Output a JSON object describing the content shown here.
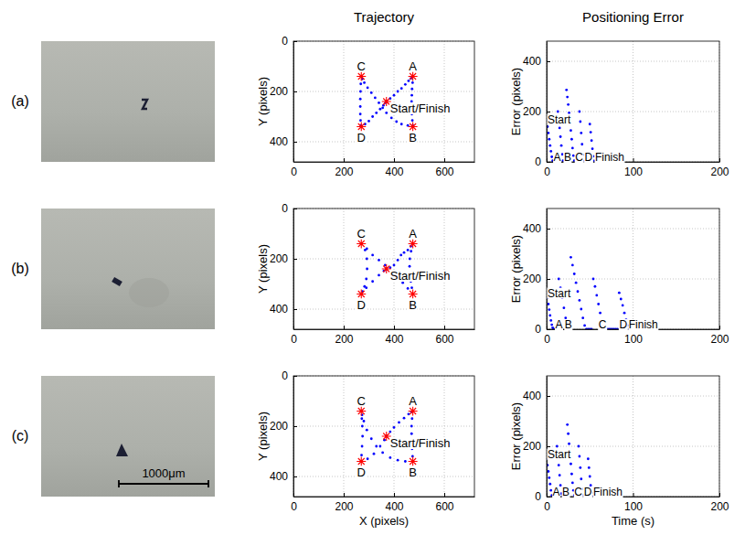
{
  "figure": {
    "column_titles": [
      "Trajectory",
      "Positioning Error"
    ],
    "row_labels": [
      "(a)",
      "(b)",
      "(c)"
    ],
    "scale_bar": "1000μm"
  },
  "chart_data": [
    {
      "type": "scatter",
      "y_label": "Y (pixels)",
      "xlim": [
        0,
        720
      ],
      "ylim": [
        480,
        0
      ],
      "xticks": [
        0,
        200,
        400,
        600
      ],
      "yticks": [
        0,
        200,
        400
      ],
      "grid": true,
      "series": [
        {
          "color": "#0000ff",
          "marker": "dot",
          "x": [
            370,
            385,
            400,
            415,
            430,
            445,
            458,
            468,
            473,
            475,
            474,
            472,
            471,
            470,
            470,
            471,
            473,
            475,
            475,
            455,
            430,
            410,
            390,
            370,
            355,
            340,
            325,
            310,
            295,
            282,
            274,
            270,
            268,
            267,
            266,
            266,
            266,
            267,
            269,
            270,
            285,
            300,
            315,
            330,
            345,
            358,
            366,
            370
          ],
          "values": [
            240,
            228,
            215,
            200,
            188,
            172,
            158,
            148,
            142,
            140,
            165,
            190,
            215,
            240,
            265,
            290,
            315,
            335,
            340,
            335,
            330,
            320,
            305,
            285,
            265,
            245,
            225,
            205,
            185,
            165,
            150,
            140,
            170,
            200,
            230,
            260,
            290,
            315,
            335,
            340,
            330,
            318,
            300,
            285,
            270,
            255,
            245,
            240
          ]
        },
        {
          "color": "#ff0000",
          "marker": "star",
          "x": [
            475,
            475,
            270,
            270,
            370
          ],
          "values": [
            140,
            340,
            140,
            340,
            240
          ]
        }
      ],
      "annotations": [
        {
          "text": "A",
          "x": 475,
          "y": 140
        },
        {
          "text": "B",
          "x": 475,
          "y": 340
        },
        {
          "text": "C",
          "x": 270,
          "y": 140
        },
        {
          "text": "D",
          "x": 270,
          "y": 340
        },
        {
          "text": "Start/Finish",
          "x": 370,
          "y": 240
        }
      ]
    },
    {
      "type": "scatter",
      "y_label": "Error (pixels)",
      "xlim": [
        0,
        200
      ],
      "ylim": [
        0,
        480
      ],
      "xticks": [
        0,
        100,
        200
      ],
      "yticks": [
        0,
        200,
        400
      ],
      "grid": true,
      "series": [
        {
          "color": "#0000ff",
          "marker": "dot",
          "x": [
            0,
            1,
            2,
            3,
            4,
            5,
            6,
            7,
            8,
            10,
            12,
            13,
            14,
            15,
            16,
            17,
            18,
            19,
            20,
            22,
            23,
            24,
            25,
            26,
            27,
            28,
            29,
            30,
            31,
            32,
            33,
            35,
            37,
            38,
            39,
            40,
            41,
            42,
            43,
            44,
            46,
            48,
            50,
            51,
            52,
            53,
            54,
            55,
            56,
            58,
            60
          ],
          "values": [
            165,
            140,
            115,
            90,
            65,
            42,
            20,
            5,
            0,
            0,
            0,
            200,
            170,
            135,
            100,
            65,
            30,
            5,
            0,
            0,
            286,
            258,
            228,
            195,
            160,
            125,
            90,
            55,
            25,
            5,
            0,
            0,
            0,
            200,
            160,
            115,
            70,
            28,
            3,
            0,
            0,
            0,
            150,
            118,
            85,
            52,
            22,
            4,
            0,
            0,
            0
          ]
        }
      ],
      "annotations": [
        {
          "text": "Start",
          "x": 1,
          "y": 150
        },
        {
          "text": "A",
          "x": 8,
          "y": 0
        },
        {
          "text": "B",
          "x": 20,
          "y": 0
        },
        {
          "text": "C",
          "x": 33,
          "y": 0
        },
        {
          "text": "D",
          "x": 44,
          "y": 0
        },
        {
          "text": "Finish",
          "x": 56,
          "y": 0
        }
      ]
    },
    {
      "type": "scatter",
      "y_label": "Y (pixels)",
      "xlim": [
        0,
        720
      ],
      "ylim": [
        480,
        0
      ],
      "xticks": [
        0,
        200,
        400,
        600
      ],
      "yticks": [
        0,
        200,
        400
      ],
      "grid": true,
      "series": [
        {
          "color": "#0000ff",
          "marker": "dot",
          "x": [
            370,
            385,
            400,
            415,
            428,
            440,
            455,
            467,
            475,
            468,
            463,
            462,
            464,
            467,
            471,
            475,
            455,
            435,
            412,
            390,
            365,
            340,
            315,
            292,
            270,
            285,
            292,
            293,
            290,
            283,
            275,
            270,
            290,
            315,
            340,
            360,
            370
          ],
          "values": [
            240,
            235,
            225,
            205,
            185,
            175,
            165,
            150,
            140,
            170,
            200,
            230,
            260,
            290,
            315,
            340,
            318,
            295,
            270,
            250,
            225,
            205,
            185,
            160,
            140,
            165,
            200,
            240,
            280,
            310,
            330,
            340,
            315,
            290,
            265,
            248,
            240
          ]
        },
        {
          "color": "#ff0000",
          "marker": "star",
          "x": [
            475,
            475,
            270,
            270,
            370
          ],
          "values": [
            140,
            340,
            140,
            340,
            240
          ]
        }
      ],
      "annotations": [
        {
          "text": "A",
          "x": 475,
          "y": 140
        },
        {
          "text": "B",
          "x": 475,
          "y": 340
        },
        {
          "text": "C",
          "x": 270,
          "y": 140
        },
        {
          "text": "D",
          "x": 270,
          "y": 340
        },
        {
          "text": "Start/Finish",
          "x": 370,
          "y": 240
        }
      ]
    },
    {
      "type": "scatter",
      "y_label": "Error (pixels)",
      "xlim": [
        0,
        200
      ],
      "ylim": [
        0,
        480
      ],
      "xticks": [
        0,
        100,
        200
      ],
      "yticks": [
        0,
        200,
        400
      ],
      "grid": true,
      "series": [
        {
          "color": "#0000ff",
          "marker": "dot",
          "x": [
            0,
            1,
            2,
            3,
            4,
            5,
            6,
            7,
            8,
            10,
            12,
            14,
            16,
            18,
            20,
            22,
            24,
            25,
            27,
            28,
            30,
            32,
            34,
            36,
            38,
            40,
            42,
            44,
            46,
            48,
            50,
            52,
            54,
            56,
            58,
            60,
            62,
            64,
            66,
            68,
            70,
            72,
            74,
            76,
            78,
            80,
            82,
            84,
            86,
            88,
            90,
            92,
            94,
            95,
            97,
            99
          ],
          "values": [
            145,
            125,
            100,
            78,
            55,
            35,
            18,
            6,
            0,
            0,
            0,
            200,
            165,
            125,
            85,
            45,
            12,
            0,
            0,
            286,
            255,
            220,
            185,
            150,
            115,
            80,
            45,
            15,
            0,
            0,
            0,
            0,
            200,
            170,
            135,
            100,
            65,
            35,
            10,
            0,
            0,
            0,
            0,
            0,
            0,
            0,
            0,
            145,
            120,
            95,
            65,
            38,
            15,
            0,
            0,
            0
          ]
        }
      ],
      "annotations": [
        {
          "text": "Start",
          "x": 1,
          "y": 125
        },
        {
          "text": "A",
          "x": 10,
          "y": 0
        },
        {
          "text": "B",
          "x": 21,
          "y": 0
        },
        {
          "text": "C",
          "x": 60,
          "y": 0
        },
        {
          "text": "D",
          "x": 84,
          "y": 0
        },
        {
          "text": "Finish",
          "x": 95,
          "y": 0
        }
      ]
    },
    {
      "type": "scatter",
      "x_label": "X (pixels)",
      "y_label": "Y (pixels)",
      "xlim": [
        0,
        720
      ],
      "ylim": [
        480,
        0
      ],
      "xticks": [
        0,
        200,
        400,
        600
      ],
      "yticks": [
        0,
        200,
        400
      ],
      "grid": true,
      "series": [
        {
          "color": "#0000ff",
          "marker": "dot",
          "x": [
            370,
            385,
            400,
            420,
            440,
            458,
            470,
            475,
            472,
            470,
            470,
            471,
            472,
            474,
            475,
            445,
            415,
            385,
            355,
            330,
            310,
            292,
            280,
            273,
            270,
            272,
            274,
            275,
            273,
            271,
            270,
            295,
            320,
            345,
            362,
            370
          ],
          "values": [
            240,
            222,
            205,
            185,
            168,
            152,
            143,
            140,
            170,
            200,
            230,
            260,
            290,
            320,
            340,
            340,
            335,
            325,
            305,
            280,
            250,
            215,
            180,
            155,
            140,
            170,
            200,
            240,
            280,
            315,
            340,
            330,
            310,
            280,
            255,
            240
          ]
        },
        {
          "color": "#ff0000",
          "marker": "star",
          "x": [
            475,
            475,
            270,
            270,
            370
          ],
          "values": [
            140,
            340,
            140,
            340,
            240
          ]
        }
      ],
      "annotations": [
        {
          "text": "A",
          "x": 475,
          "y": 140
        },
        {
          "text": "B",
          "x": 475,
          "y": 340
        },
        {
          "text": "C",
          "x": 270,
          "y": 140
        },
        {
          "text": "D",
          "x": 270,
          "y": 340
        },
        {
          "text": "Start/Finish",
          "x": 370,
          "y": 240
        }
      ]
    },
    {
      "type": "scatter",
      "x_label": "Time (s)",
      "y_label": "Error (pixels)",
      "xlim": [
        0,
        200
      ],
      "ylim": [
        0,
        480
      ],
      "xticks": [
        0,
        100,
        200
      ],
      "yticks": [
        0,
        200,
        400
      ],
      "grid": true,
      "series": [
        {
          "color": "#0000ff",
          "marker": "dot",
          "x": [
            0,
            1,
            2,
            3,
            4,
            5,
            6,
            7,
            9,
            11,
            12,
            13,
            14,
            15,
            16,
            17,
            18,
            20,
            22,
            24,
            25,
            26,
            27,
            28,
            29,
            30,
            31,
            32,
            33,
            35,
            37,
            38,
            39,
            40,
            41,
            42,
            43,
            45,
            47,
            48,
            49,
            50,
            51,
            52,
            53,
            55,
            57
          ],
          "values": [
            150,
            125,
            100,
            75,
            50,
            25,
            5,
            0,
            0,
            0,
            200,
            165,
            125,
            85,
            45,
            12,
            0,
            0,
            0,
            286,
            250,
            210,
            170,
            130,
            90,
            55,
            25,
            5,
            0,
            0,
            200,
            160,
            115,
            70,
            30,
            5,
            0,
            0,
            0,
            150,
            115,
            80,
            45,
            15,
            0,
            0,
            0
          ]
        }
      ],
      "annotations": [
        {
          "text": "Start",
          "x": 1,
          "y": 150
        },
        {
          "text": "A",
          "x": 7,
          "y": 0
        },
        {
          "text": "B",
          "x": 18,
          "y": 0
        },
        {
          "text": "C",
          "x": 32,
          "y": 0
        },
        {
          "text": "D",
          "x": 43,
          "y": 0
        },
        {
          "text": "Finish",
          "x": 54,
          "y": 0
        }
      ]
    }
  ]
}
